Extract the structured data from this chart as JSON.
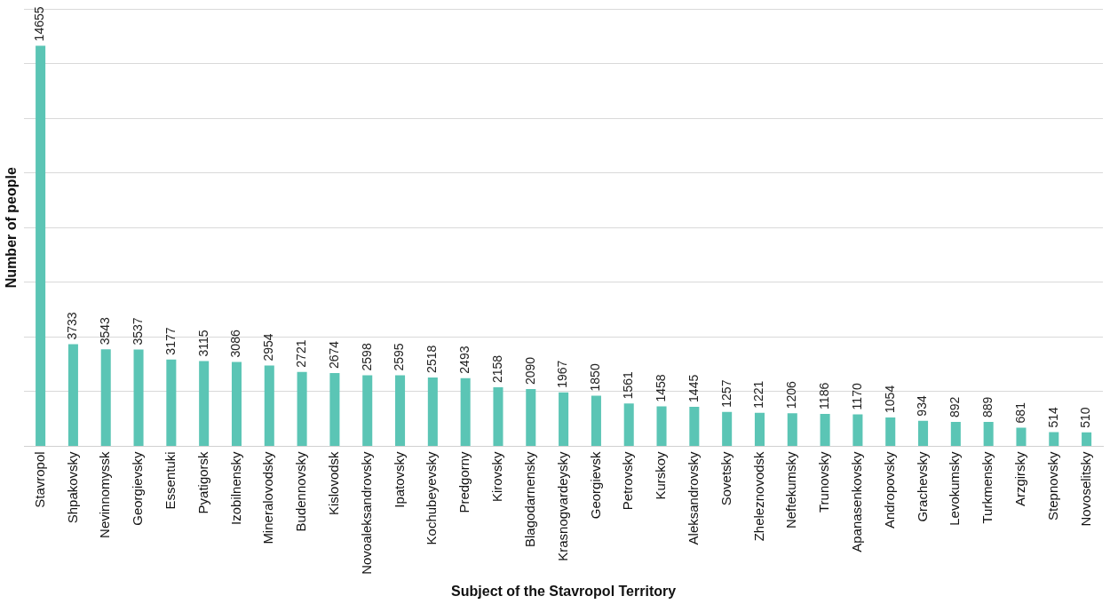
{
  "chart_data": {
    "type": "bar",
    "xlabel": "Subject of the Stavropol Territory",
    "ylabel": "Number of people",
    "categories": [
      "Stavropol",
      "Shpakovsky",
      "Nevinnomyssk",
      "Georgievsky",
      "Essentuki",
      "Pyatigorsk",
      "Izobilnensky",
      "Mineralovodsky",
      "Budennovsky",
      "Kislovodsk",
      "Novoaleksandrovsky",
      "Ipatovsky",
      "Kochubeyevsky",
      "Predgorny",
      "Kirovsky",
      "Blagodarnensky",
      "Krasnogvardeysky",
      "Georgievsk",
      "Petrovsky",
      "Kurskoy",
      "Aleksandrovsky",
      "Sovetsky",
      "Zheleznovodsk",
      "Neftekumsky",
      "Trunovsky",
      "Apanasenkovsky",
      "Andropovsky",
      "Grachevsky",
      "Levokumsky",
      "Turkmensky",
      "Arzgirsky",
      "Stepnovsky",
      "Novoselitsky"
    ],
    "values": [
      14655,
      3733,
      3543,
      3537,
      3177,
      3115,
      3086,
      2954,
      2721,
      2674,
      2598,
      2595,
      2518,
      2493,
      2158,
      2090,
      1967,
      1850,
      1561,
      1458,
      1445,
      1257,
      1221,
      1206,
      1186,
      1170,
      1054,
      934,
      892,
      889,
      681,
      514,
      510
    ],
    "color": "#5bc5b5",
    "data_labels": true,
    "ylim": [
      0,
      16000
    ],
    "yticks": [
      {
        "value": 0,
        "label": null
      },
      {
        "value": 2000,
        "label": null
      },
      {
        "value": 4000,
        "label": null
      },
      {
        "value": 6000,
        "label": null
      },
      {
        "value": 8000,
        "label": null
      },
      {
        "value": 10000,
        "label": null
      },
      {
        "value": 12000,
        "label": null
      },
      {
        "value": 14000,
        "label": null
      },
      {
        "value": 16000,
        "label": null
      }
    ],
    "grid": "y",
    "tick_labels": "x",
    "legend": false
  }
}
